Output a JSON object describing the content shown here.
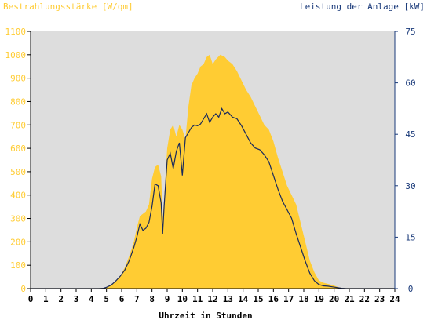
{
  "chart_data": {
    "type": "area",
    "left_axis_title": "Bestrahlungsstärke [W/qm]",
    "right_axis_title": "Leistung der Anlage [kW]",
    "xlabel": "Uhrzeit in Stunden",
    "x_range": [
      0,
      24
    ],
    "x_ticks": [
      "0",
      "1",
      "2",
      "3",
      "4",
      "5",
      "6",
      "7",
      "8",
      "9",
      "10",
      "11",
      "12",
      "13",
      "14",
      "15",
      "16",
      "17",
      "18",
      "19",
      "20",
      "21",
      "22",
      "23",
      "24"
    ],
    "left_ylim": [
      0,
      1100
    ],
    "left_ticks": [
      "0",
      "100",
      "200",
      "300",
      "400",
      "500",
      "600",
      "700",
      "800",
      "900",
      "1000",
      "1100"
    ],
    "right_ylim": [
      0,
      75
    ],
    "right_ticks": [
      "0",
      "15",
      "30",
      "45",
      "60",
      "75"
    ],
    "grid": false,
    "colors": {
      "irradiance_fill": "#ffcc33",
      "power_line": "#1a2a5c",
      "plot_background": "#dddddd",
      "left_axis_text": "#ffcc33",
      "right_axis_text": "#1a3a7a",
      "axis": "#000000"
    },
    "series": [
      {
        "axis": "left",
        "style": "filled-area",
        "points": [
          [
            0,
            0
          ],
          [
            4.5,
            0
          ],
          [
            4.8,
            2
          ],
          [
            5.0,
            5
          ],
          [
            5.3,
            15
          ],
          [
            5.6,
            30
          ],
          [
            5.9,
            55
          ],
          [
            6.2,
            90
          ],
          [
            6.5,
            140
          ],
          [
            6.8,
            200
          ],
          [
            7.0,
            260
          ],
          [
            7.2,
            310
          ],
          [
            7.4,
            320
          ],
          [
            7.6,
            330
          ],
          [
            7.8,
            360
          ],
          [
            8.0,
            470
          ],
          [
            8.2,
            520
          ],
          [
            8.4,
            530
          ],
          [
            8.6,
            480
          ],
          [
            8.7,
            300
          ],
          [
            8.8,
            380
          ],
          [
            9.0,
            600
          ],
          [
            9.2,
            680
          ],
          [
            9.4,
            700
          ],
          [
            9.6,
            650
          ],
          [
            9.8,
            700
          ],
          [
            10.0,
            680
          ],
          [
            10.2,
            640
          ],
          [
            10.4,
            780
          ],
          [
            10.6,
            870
          ],
          [
            10.8,
            900
          ],
          [
            11.0,
            920
          ],
          [
            11.2,
            950
          ],
          [
            11.4,
            960
          ],
          [
            11.6,
            990
          ],
          [
            11.8,
            1000
          ],
          [
            12.0,
            960
          ],
          [
            12.2,
            980
          ],
          [
            12.5,
            1000
          ],
          [
            12.8,
            990
          ],
          [
            13.0,
            975
          ],
          [
            13.3,
            960
          ],
          [
            13.6,
            930
          ],
          [
            13.9,
            890
          ],
          [
            14.2,
            850
          ],
          [
            14.5,
            820
          ],
          [
            14.8,
            780
          ],
          [
            15.1,
            740
          ],
          [
            15.4,
            700
          ],
          [
            15.7,
            680
          ],
          [
            16.0,
            630
          ],
          [
            16.3,
            560
          ],
          [
            16.6,
            500
          ],
          [
            16.9,
            440
          ],
          [
            17.2,
            400
          ],
          [
            17.5,
            360
          ],
          [
            17.8,
            280
          ],
          [
            18.1,
            200
          ],
          [
            18.4,
            120
          ],
          [
            18.7,
            70
          ],
          [
            19.0,
            35
          ],
          [
            19.3,
            25
          ],
          [
            19.6,
            20
          ],
          [
            19.9,
            15
          ],
          [
            20.2,
            8
          ],
          [
            20.5,
            2
          ],
          [
            20.8,
            0
          ],
          [
            24,
            0
          ]
        ]
      },
      {
        "axis": "right",
        "style": "line",
        "points": [
          [
            0,
            0
          ],
          [
            4.5,
            0
          ],
          [
            4.8,
            0.1
          ],
          [
            5.0,
            0.4
          ],
          [
            5.3,
            1.0
          ],
          [
            5.6,
            2.2
          ],
          [
            5.9,
            3.6
          ],
          [
            6.2,
            5.4
          ],
          [
            6.5,
            8.2
          ],
          [
            6.8,
            12.0
          ],
          [
            7.0,
            15.0
          ],
          [
            7.2,
            18.8
          ],
          [
            7.4,
            17.0
          ],
          [
            7.6,
            17.6
          ],
          [
            7.8,
            19.3
          ],
          [
            8.0,
            24.0
          ],
          [
            8.2,
            30.5
          ],
          [
            8.4,
            30.0
          ],
          [
            8.6,
            25.0
          ],
          [
            8.7,
            16.0
          ],
          [
            8.8,
            24.0
          ],
          [
            9.0,
            37.5
          ],
          [
            9.2,
            39.5
          ],
          [
            9.4,
            35.0
          ],
          [
            9.6,
            40.0
          ],
          [
            9.8,
            42.5
          ],
          [
            10.0,
            33.0
          ],
          [
            10.2,
            44.0
          ],
          [
            10.4,
            45.5
          ],
          [
            10.6,
            47.0
          ],
          [
            10.8,
            47.7
          ],
          [
            11.0,
            47.5
          ],
          [
            11.2,
            48.0
          ],
          [
            11.4,
            49.5
          ],
          [
            11.6,
            51.0
          ],
          [
            11.8,
            48.5
          ],
          [
            12.0,
            50.0
          ],
          [
            12.2,
            51.0
          ],
          [
            12.4,
            50.0
          ],
          [
            12.6,
            52.5
          ],
          [
            12.8,
            51.0
          ],
          [
            13.0,
            51.5
          ],
          [
            13.3,
            50.0
          ],
          [
            13.6,
            49.5
          ],
          [
            13.9,
            47.5
          ],
          [
            14.2,
            45.0
          ],
          [
            14.5,
            42.5
          ],
          [
            14.8,
            41.0
          ],
          [
            15.1,
            40.5
          ],
          [
            15.4,
            39.0
          ],
          [
            15.7,
            37.0
          ],
          [
            16.0,
            33.0
          ],
          [
            16.3,
            29.0
          ],
          [
            16.6,
            25.5
          ],
          [
            16.9,
            23.0
          ],
          [
            17.2,
            20.5
          ],
          [
            17.5,
            16.0
          ],
          [
            17.8,
            12.0
          ],
          [
            18.1,
            8.0
          ],
          [
            18.4,
            4.5
          ],
          [
            18.7,
            2.3
          ],
          [
            19.0,
            1.2
          ],
          [
            19.3,
            0.8
          ],
          [
            19.6,
            0.7
          ],
          [
            19.9,
            0.5
          ],
          [
            20.2,
            0.3
          ],
          [
            20.5,
            0.1
          ],
          [
            20.8,
            0
          ],
          [
            24,
            0
          ]
        ]
      }
    ]
  }
}
